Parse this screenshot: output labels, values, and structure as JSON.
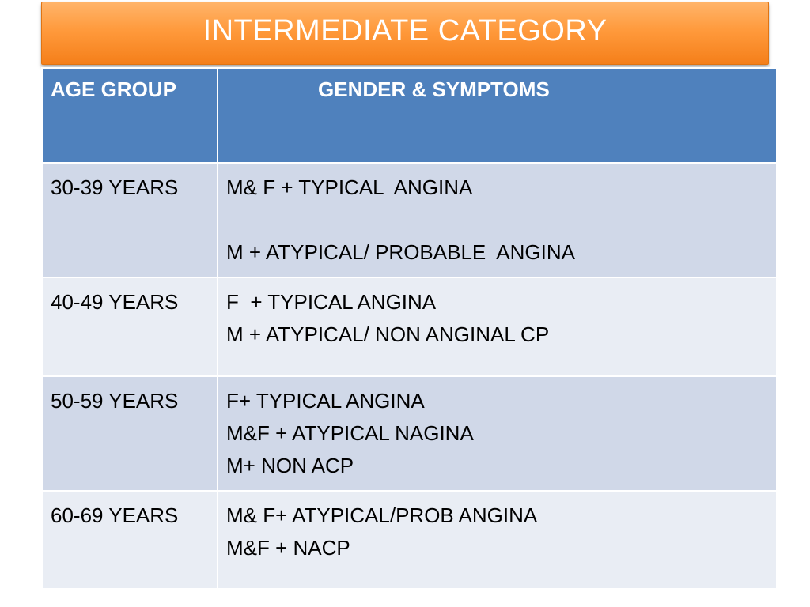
{
  "slide": {
    "title": "INTERMEDIATE CATEGORY"
  },
  "table": {
    "headers": [
      "AGE GROUP",
      "GENDER & SYMPTOMS"
    ],
    "rows": [
      {
        "age": "30-39 YEARS",
        "lines": [
          "M& F + TYPICAL  ANGINA",
          "M + ATYPICAL/ PROBABLE  ANGINA"
        ]
      },
      {
        "age": "40-49 YEARS",
        "lines": [
          "F  + TYPICAL ANGINA",
          "M + ATYPICAL/ NON ANGINAL CP"
        ]
      },
      {
        "age": "50-59 YEARS",
        "lines": [
          "F+ TYPICAL ANGINA",
          "M&F + ATYPICAL NAGINA",
          "M+ NON ACP"
        ]
      },
      {
        "age": "60-69 YEARS",
        "lines": [
          "M& F+ ATYPICAL/PROB ANGINA",
          "M&F + NACP"
        ]
      }
    ]
  },
  "colors": {
    "title_bar": "#f7941d",
    "header_fill": "#4f81bd",
    "row_dark": "#d0d8e8",
    "row_light": "#e9edf4"
  }
}
